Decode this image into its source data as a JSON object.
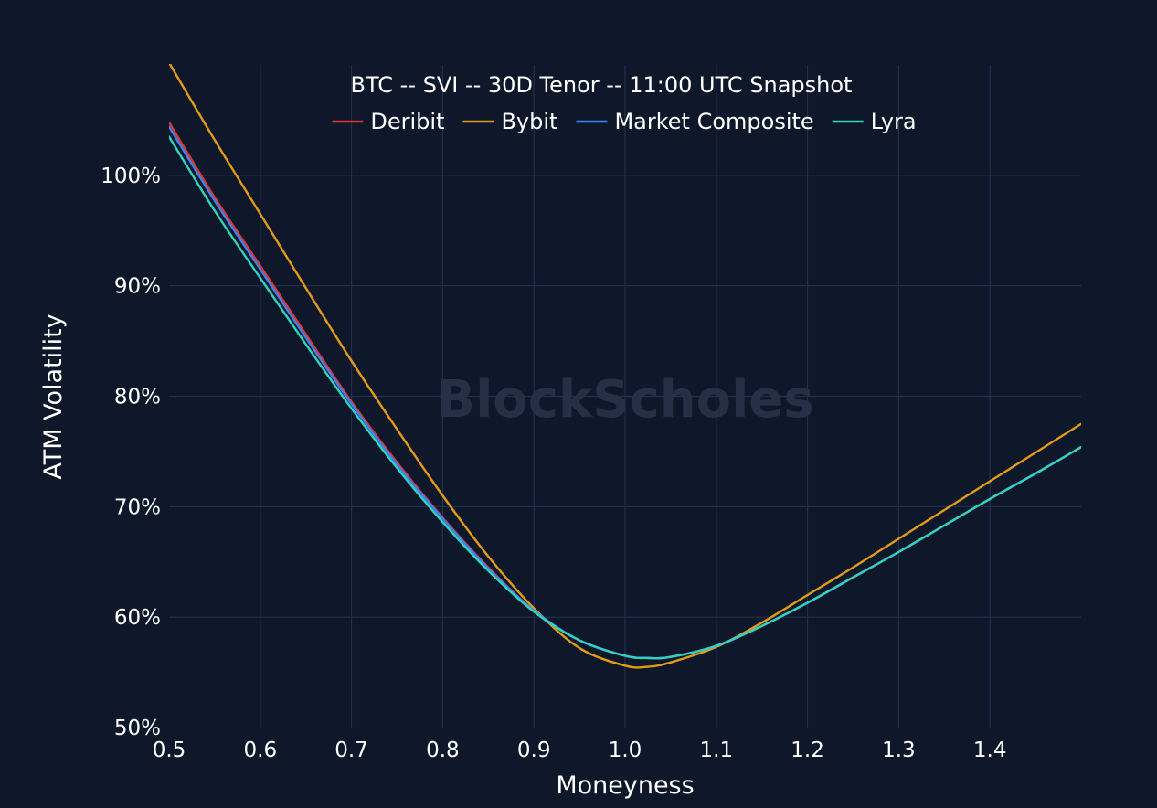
{
  "chart_data": {
    "type": "line",
    "title": "BTC -- SVI -- 30D Tenor -- 11:00 UTC Snapshot",
    "xlabel": "Moneyness",
    "ylabel": "ATM Volatility",
    "watermark": "BlockScholes",
    "xlim": [
      0.5,
      1.5
    ],
    "ylim": [
      50,
      110
    ],
    "xticks": [
      0.5,
      0.6,
      0.7,
      0.8,
      0.9,
      1.0,
      1.1,
      1.2,
      1.3,
      1.4
    ],
    "xtick_labels": [
      "0.5",
      "0.6",
      "0.7",
      "0.8",
      "0.9",
      "1.0",
      "1.1",
      "1.2",
      "1.3",
      "1.4"
    ],
    "yticks": [
      50,
      60,
      70,
      80,
      90,
      100
    ],
    "ytick_labels": [
      "50%",
      "60%",
      "70%",
      "80%",
      "90%",
      "100%"
    ],
    "grid": true,
    "legend_position": "top-center",
    "x": [
      0.5,
      0.55,
      0.6,
      0.65,
      0.7,
      0.75,
      0.8,
      0.85,
      0.9,
      0.95,
      1.0,
      1.025,
      1.05,
      1.1,
      1.15,
      1.2,
      1.25,
      1.3,
      1.35,
      1.4,
      1.45,
      1.5
    ],
    "series": [
      {
        "name": "Deribit",
        "color": "#e0342c",
        "values": [
          104.8,
          98.0,
          91.8,
          85.6,
          79.5,
          74.0,
          69.0,
          64.5,
          60.6,
          57.9,
          56.5,
          56.3,
          56.4,
          57.4,
          59.2,
          61.3,
          63.6,
          65.9,
          68.3,
          70.7,
          73.0,
          75.4
        ]
      },
      {
        "name": "Bybit",
        "color": "#e39c12",
        "values": [
          110.2,
          103.2,
          96.5,
          89.8,
          83.2,
          77.0,
          71.0,
          65.5,
          60.8,
          57.2,
          55.6,
          55.5,
          55.9,
          57.3,
          59.5,
          62.0,
          64.5,
          67.1,
          69.7,
          72.3,
          74.9,
          77.5
        ]
      },
      {
        "name": "Market Composite",
        "color": "#3b82f6",
        "values": [
          104.4,
          97.7,
          91.5,
          85.3,
          79.3,
          73.8,
          68.9,
          64.4,
          60.6,
          57.9,
          56.5,
          56.3,
          56.4,
          57.4,
          59.2,
          61.3,
          63.6,
          65.9,
          68.3,
          70.7,
          73.0,
          75.4
        ]
      },
      {
        "name": "Lyra",
        "color": "#2dd4bf",
        "values": [
          103.5,
          96.8,
          90.7,
          84.7,
          78.9,
          73.5,
          68.6,
          64.2,
          60.5,
          57.9,
          56.5,
          56.3,
          56.4,
          57.4,
          59.2,
          61.3,
          63.6,
          65.9,
          68.3,
          70.7,
          73.0,
          75.4
        ]
      }
    ]
  }
}
